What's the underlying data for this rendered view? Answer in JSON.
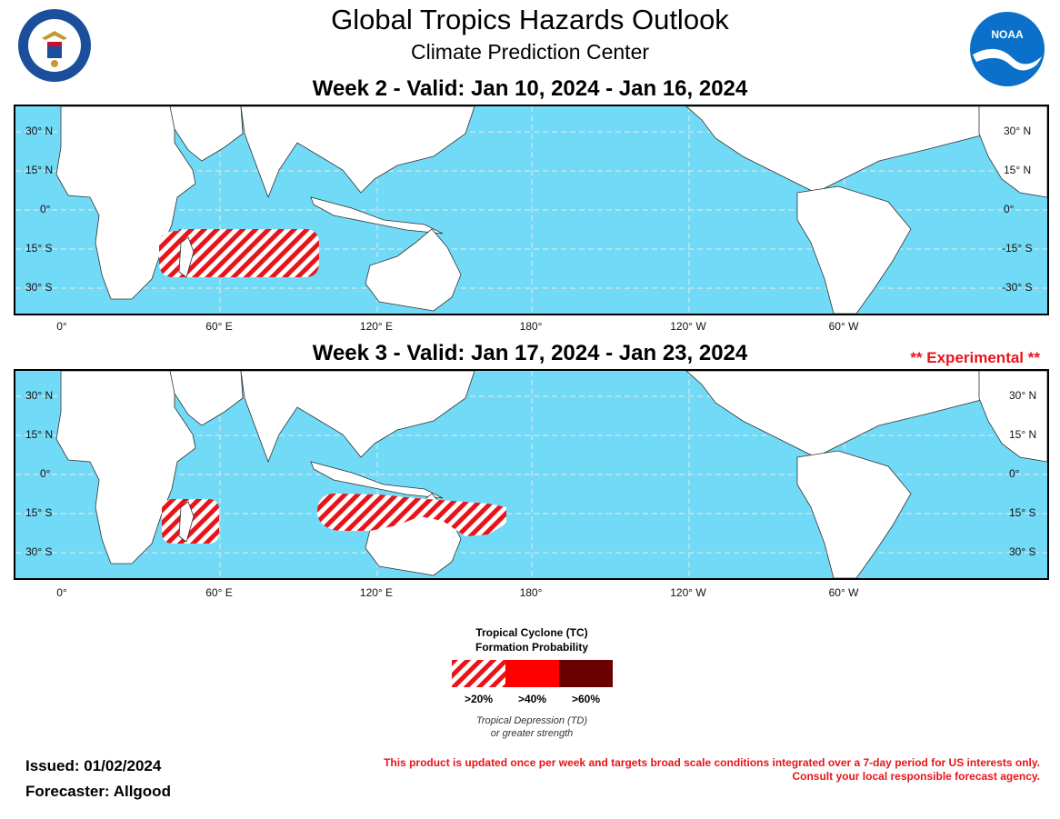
{
  "header": {
    "title": "Global Tropics Hazards Outlook",
    "subtitle": "Climate Prediction Center",
    "doc_logo_text": "DEPARTMENT OF COMMERCE · UNITED STATES OF AMERICA",
    "noaa_logo_text": "NOAA"
  },
  "week2": {
    "title": "Week 2 - Valid: Jan 10, 2024 - Jan 16, 2024"
  },
  "week3": {
    "title": "Week 3 - Valid: Jan 17, 2024 - Jan 23, 2024",
    "experimental": "** Experimental **"
  },
  "axes": {
    "lat_left": [
      "30° N",
      "15° N",
      "0°",
      "15° S",
      "30° S"
    ],
    "lat_right": [
      "30° N",
      "15° N",
      "0°",
      "-15° S",
      "-30° S"
    ],
    "lat_right_week3": [
      "30° N",
      "15° N",
      "0°",
      "15° S",
      "30° S"
    ],
    "lon": [
      "0°",
      "60° E",
      "120° E",
      "180°",
      "120° W",
      "60° W"
    ]
  },
  "legend": {
    "title_line1": "Tropical Cyclone (TC)",
    "title_line2": "Formation Probability",
    "labels": [
      ">20%",
      ">40%",
      ">60%"
    ],
    "colors": {
      "p20": "#e8141a",
      "p40": "#ff0000",
      "p60": "#6b0000"
    },
    "note_line1": "Tropical Depression (TD)",
    "note_line2": "or greater strength"
  },
  "footer": {
    "issued": "Issued: 01/02/2024",
    "forecaster": "Forecaster: Allgood",
    "disclaimer_line1": "This product is updated once per week and targets broad scale conditions integrated over a 7-day period for US interests only.",
    "disclaimer_line2": "Consult your local responsible forecast agency."
  },
  "colors": {
    "ocean": "#70daf7",
    "land": "#ffffff",
    "hazard": "#e8141a"
  }
}
